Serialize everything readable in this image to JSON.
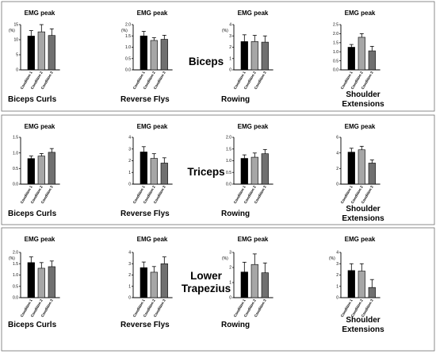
{
  "chart_data": [
    {
      "row": 0,
      "type": "bar",
      "title": "EMG peak",
      "ylabel": "(%)",
      "exercise": "Biceps Curls",
      "ylim": [
        0,
        15
      ],
      "yticks": [
        0,
        5,
        10,
        15
      ],
      "categories": [
        "Condition 1",
        "Condition 2",
        "Condition 3"
      ],
      "values": [
        11.2,
        12.6,
        11.4
      ],
      "errors": [
        1.8,
        2.4,
        2.2
      ]
    },
    {
      "row": 0,
      "type": "bar",
      "title": "EMG peak",
      "ylabel": "(%)",
      "exercise": "Reverse Flys",
      "ylim": [
        0,
        2.0
      ],
      "yticks": [
        0,
        0.5,
        1.0,
        1.5,
        2.0
      ],
      "categories": [
        "Condition 1",
        "Condition 2",
        "Condition 3"
      ],
      "values": [
        1.5,
        1.3,
        1.35
      ],
      "errors": [
        0.2,
        0.12,
        0.18
      ]
    },
    {
      "row": 0,
      "type": "bar",
      "title": "EMG peak",
      "ylabel": "(%)",
      "exercise": "Rowing",
      "ylim": [
        0,
        4
      ],
      "yticks": [
        0,
        1,
        2,
        3,
        4
      ],
      "categories": [
        "Condition 1",
        "Condition 2",
        "Condition 3"
      ],
      "values": [
        2.5,
        2.5,
        2.45
      ],
      "errors": [
        0.6,
        0.55,
        0.55
      ]
    },
    {
      "row": 0,
      "type": "bar",
      "title": "EMG peak",
      "ylabel": "",
      "exercise": "Shoulder\nExtensions",
      "ylim": [
        0,
        2.5
      ],
      "yticks": [
        0,
        0.5,
        1.0,
        1.5,
        2.0,
        2.5
      ],
      "categories": [
        "Condition 1",
        "Condition 2",
        "Condition 3"
      ],
      "values": [
        1.25,
        1.8,
        1.05
      ],
      "errors": [
        0.15,
        0.2,
        0.25
      ]
    },
    {
      "row": 1,
      "type": "bar",
      "title": "EMG peak",
      "ylabel": "",
      "exercise": "Biceps Curls",
      "ylim": [
        0,
        1.5
      ],
      "yticks": [
        0,
        0.5,
        1.0,
        1.5
      ],
      "categories": [
        "Condition 1",
        "Condition 2",
        "Condition 3"
      ],
      "values": [
        0.82,
        0.9,
        1.02
      ],
      "errors": [
        0.08,
        0.08,
        0.12
      ]
    },
    {
      "row": 1,
      "type": "bar",
      "title": "EMG peak",
      "ylabel": "",
      "exercise": "Reverse Flys",
      "ylim": [
        0,
        4
      ],
      "yticks": [
        0,
        1,
        2,
        3,
        4
      ],
      "categories": [
        "Condition 1",
        "Condition 2",
        "Condition 3"
      ],
      "values": [
        2.75,
        2.2,
        1.8
      ],
      "errors": [
        0.45,
        0.4,
        0.45
      ]
    },
    {
      "row": 1,
      "type": "bar",
      "title": "EMG peak",
      "ylabel": "",
      "exercise": "Rowing",
      "ylim": [
        0,
        2.0
      ],
      "yticks": [
        0,
        0.5,
        1.0,
        1.5,
        2.0
      ],
      "categories": [
        "Condition 1",
        "Condition 2",
        "Condition 3"
      ],
      "values": [
        1.1,
        1.15,
        1.3
      ],
      "errors": [
        0.15,
        0.18,
        0.18
      ]
    },
    {
      "row": 1,
      "type": "bar",
      "title": "EMG peak",
      "ylabel": "",
      "exercise": "Shoulder\nExtensions",
      "ylim": [
        0,
        6
      ],
      "yticks": [
        0,
        2,
        4,
        6
      ],
      "categories": [
        "Condition 1",
        "Condition 2",
        "Condition 3"
      ],
      "values": [
        4.1,
        4.4,
        2.7
      ],
      "errors": [
        0.5,
        0.45,
        0.4
      ]
    },
    {
      "row": 2,
      "type": "bar",
      "title": "EMG peak",
      "ylabel": "(%)",
      "exercise": "Biceps Curls",
      "ylim": [
        0,
        2.0
      ],
      "yticks": [
        0,
        0.5,
        1.0,
        1.5,
        2.0
      ],
      "categories": [
        "Condition 1",
        "Condition 2",
        "Condition 3"
      ],
      "values": [
        1.55,
        1.3,
        1.37
      ],
      "errors": [
        0.25,
        0.25,
        0.25
      ]
    },
    {
      "row": 2,
      "type": "bar",
      "title": "EMG peak",
      "ylabel": "",
      "exercise": "Reverse Flys",
      "ylim": [
        0,
        4
      ],
      "yticks": [
        0,
        1,
        2,
        3,
        4
      ],
      "categories": [
        "Condition 1",
        "Condition 2",
        "Condition 3"
      ],
      "values": [
        2.65,
        2.25,
        3.0
      ],
      "errors": [
        0.5,
        0.5,
        0.6
      ]
    },
    {
      "row": 2,
      "type": "bar",
      "title": "EMG peak",
      "ylabel": "(%)",
      "exercise": "Rowing",
      "ylim": [
        0,
        3
      ],
      "yticks": [
        0,
        1,
        2,
        3
      ],
      "categories": [
        "Condition 1",
        "Condition 2",
        "Condition 3"
      ],
      "values": [
        1.7,
        2.2,
        1.65
      ],
      "errors": [
        0.65,
        0.7,
        0.65
      ]
    },
    {
      "row": 2,
      "type": "bar",
      "title": "EMG peak",
      "ylabel": "(%)",
      "exercise": "Shoulder\nExtensions",
      "ylim": [
        0,
        4
      ],
      "yticks": [
        0,
        1,
        2,
        3,
        4
      ],
      "categories": [
        "Condition 1",
        "Condition 2",
        "Condition 3"
      ],
      "values": [
        2.4,
        2.35,
        0.9
      ],
      "errors": [
        0.6,
        0.65,
        0.7
      ]
    }
  ],
  "muscles": [
    "Biceps",
    "Triceps",
    "Lower\nTrapezius"
  ],
  "colors": {
    "condition_1": "#000000",
    "condition_2": "#a6a6a6",
    "condition_3": "#707070"
  }
}
